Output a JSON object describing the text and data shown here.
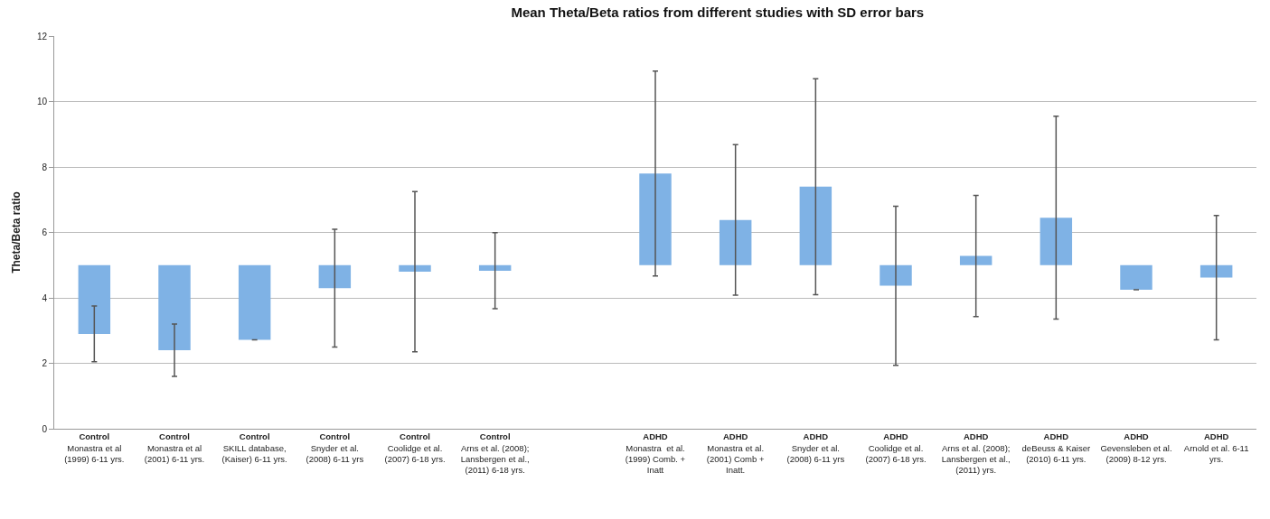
{
  "chart_data": {
    "type": "bar",
    "title": "Mean Theta/Beta ratios from different studies with SD error bars",
    "ylabel": "Theta/Beta ratio",
    "categories": [
      "Control\nMonastra et al (1999) 6-11 yrs.",
      "Control\nMonastra et al (2001) 6-11 yrs.",
      "Control\nSKILL database, (Kaiser) 6-11 yrs.",
      "Control\nSnyder et al. (2008) 6-11 yrs",
      "Control\nCoolidge et al. (2007) 6-18 yrs.",
      "Control\nArns et al. (2008); Lansbergen et al., (2011) 6-18 yrs.",
      null,
      "ADHD\nMonastra  et al. (1999) Comb. + Inatt",
      "ADHD\nMonastra et al. (2001) Comb + Inatt.",
      "ADHD\nSnyder et al. (2008) 6-11 yrs",
      "ADHD\nCoolidge et al. (2007) 6-18 yrs.",
      "ADHD\nArns et al. (2008); Lansbergen et al., (2011) yrs.",
      "ADHD\ndeBeuss & Kaiser (2010) 6-11 yrs.",
      "ADHD\nGevensleben et al. (2009) 8-12 yrs.",
      "ADHD\nArnold et al. 6-11 yrs."
    ],
    "base": [
      5,
      5,
      5,
      5,
      5,
      5,
      null,
      5,
      5,
      5,
      5,
      5,
      5,
      5,
      5
    ],
    "values": [
      -2.1,
      -2.6,
      -2.28,
      -0.7,
      -0.2,
      -0.17,
      null,
      2.8,
      1.38,
      2.4,
      -0.63,
      0.28,
      1.45,
      -0.75,
      -0.38
    ],
    "errors": [
      0.85,
      0.8,
      null,
      1.8,
      2.45,
      1.16,
      null,
      3.13,
      2.3,
      3.3,
      2.43,
      1.85,
      3.1,
      null,
      1.9
    ],
    "color": "#7fb2e5",
    "ylim": [
      0,
      12
    ],
    "yticks": [
      0,
      2,
      4,
      6,
      8,
      10,
      12
    ],
    "grid": "y"
  }
}
